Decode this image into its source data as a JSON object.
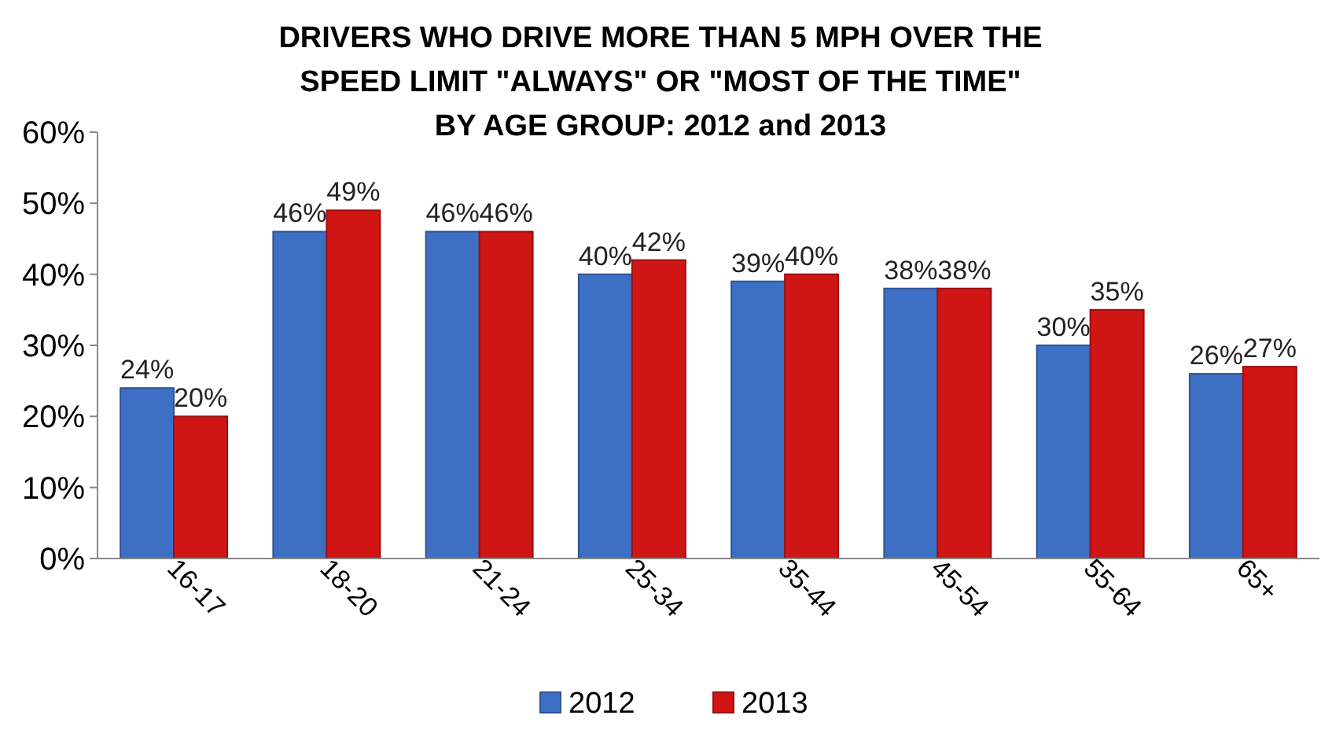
{
  "chart_data": {
    "type": "bar",
    "title": "DRIVERS WHO DRIVE MORE THAN 5 MPH OVER THE\nSPEED LIMIT \"ALWAYS\" OR \"MOST OF THE TIME\"\nBY AGE GROUP:  2012 and 2013",
    "categories": [
      "16-17",
      "18-20",
      "21-24",
      "25-34",
      "35-44",
      "45-54",
      "55-64",
      "65+"
    ],
    "series": [
      {
        "name": "2012",
        "color": "#3d70c4",
        "values": [
          24,
          46,
          46,
          40,
          39,
          38,
          30,
          26
        ],
        "value_labels": [
          "24%",
          "46%",
          "46%",
          "40%",
          "39%",
          "38%",
          "30%",
          "26%"
        ]
      },
      {
        "name": "2013",
        "color": "#d01515",
        "values": [
          20,
          49,
          46,
          42,
          40,
          38,
          35,
          27
        ],
        "value_labels": [
          "20%",
          "49%",
          "46%",
          "42%",
          "40%",
          "38%",
          "35%",
          "27%"
        ]
      }
    ],
    "ylim": [
      0,
      60
    ],
    "yticks": [
      {
        "value": 0,
        "label": "0%"
      },
      {
        "value": 10,
        "label": "10%"
      },
      {
        "value": 20,
        "label": "20%"
      },
      {
        "value": 30,
        "label": "30%"
      },
      {
        "value": 40,
        "label": "40%"
      },
      {
        "value": 50,
        "label": "50%"
      },
      {
        "value": 60,
        "label": "60%"
      }
    ],
    "grid": false,
    "legend": "bottom"
  }
}
